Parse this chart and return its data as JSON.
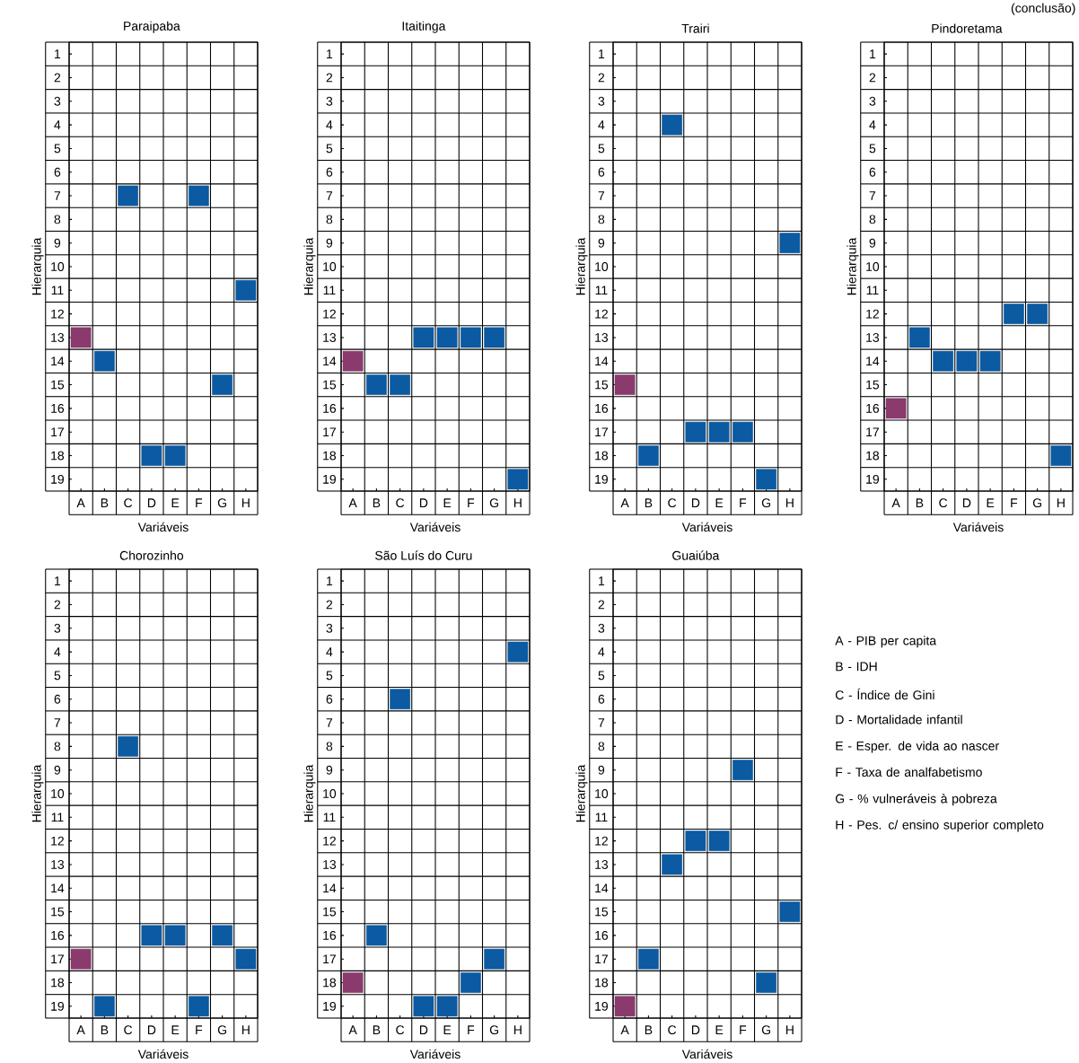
{
  "chart_data": [
    {
      "type": "scatter",
      "title": "Paraipaba",
      "xlabel": "Variáveis",
      "ylabel": "Hierarquia",
      "categories": [
        "A",
        "B",
        "C",
        "D",
        "E",
        "F",
        "G",
        "H"
      ],
      "values": [
        13,
        14,
        7,
        18,
        18,
        7,
        15,
        11
      ],
      "colors": [
        "#8b3a6e",
        "#0b5aa2",
        "#0b5aa2",
        "#0b5aa2",
        "#0b5aa2",
        "#0b5aa2",
        "#0b5aa2",
        "#0b5aa2"
      ],
      "ylim": [
        19.5,
        0.5
      ],
      "yticks": [
        1,
        2,
        3,
        4,
        5,
        6,
        7,
        8,
        9,
        10,
        11,
        12,
        13,
        14,
        15,
        16,
        17,
        18,
        19
      ],
      "grid": true,
      "marker": "square"
    },
    {
      "type": "scatter",
      "title": "Itaitinga",
      "xlabel": "Variáveis",
      "ylabel": "Hierarquia",
      "categories": [
        "A",
        "B",
        "C",
        "D",
        "E",
        "F",
        "G",
        "H"
      ],
      "values": [
        14,
        15,
        15,
        13,
        13,
        13,
        13,
        19
      ],
      "colors": [
        "#8b3a6e",
        "#0b5aa2",
        "#0b5aa2",
        "#0b5aa2",
        "#0b5aa2",
        "#0b5aa2",
        "#0b5aa2",
        "#0b5aa2"
      ],
      "ylim": [
        19.5,
        0.5
      ],
      "yticks": [
        1,
        2,
        3,
        4,
        5,
        6,
        7,
        8,
        9,
        10,
        11,
        12,
        13,
        14,
        15,
        16,
        17,
        18,
        19
      ],
      "grid": true,
      "marker": "square"
    },
    {
      "type": "scatter",
      "title": "Trairi",
      "xlabel": "Variáveis",
      "ylabel": "Hierarquia",
      "categories": [
        "A",
        "B",
        "C",
        "D",
        "E",
        "F",
        "G",
        "H"
      ],
      "values": [
        15,
        18,
        4,
        17,
        17,
        17,
        19,
        9
      ],
      "colors": [
        "#8b3a6e",
        "#0b5aa2",
        "#0b5aa2",
        "#0b5aa2",
        "#0b5aa2",
        "#0b5aa2",
        "#0b5aa2",
        "#0b5aa2"
      ],
      "ylim": [
        19.5,
        0.5
      ],
      "yticks": [
        1,
        2,
        3,
        4,
        5,
        6,
        7,
        8,
        9,
        10,
        11,
        12,
        13,
        14,
        15,
        16,
        17,
        18,
        19
      ],
      "grid": true,
      "marker": "square"
    },
    {
      "type": "scatter",
      "title": "Pindoretama",
      "xlabel": "Variáveis",
      "ylabel": "Hierarquia",
      "categories": [
        "A",
        "B",
        "C",
        "D",
        "E",
        "F",
        "G",
        "H"
      ],
      "values": [
        16,
        13,
        14,
        14,
        14,
        12,
        12,
        18
      ],
      "colors": [
        "#8b3a6e",
        "#0b5aa2",
        "#0b5aa2",
        "#0b5aa2",
        "#0b5aa2",
        "#0b5aa2",
        "#0b5aa2",
        "#0b5aa2"
      ],
      "ylim": [
        19.5,
        0.5
      ],
      "yticks": [
        1,
        2,
        3,
        4,
        5,
        6,
        7,
        8,
        9,
        10,
        11,
        12,
        13,
        14,
        15,
        16,
        17,
        18,
        19
      ],
      "grid": true,
      "marker": "square"
    },
    {
      "type": "scatter",
      "title": "Chorozinho",
      "xlabel": "Variáveis",
      "ylabel": "Hierarquia",
      "categories": [
        "A",
        "B",
        "C",
        "D",
        "E",
        "F",
        "G",
        "H"
      ],
      "values": [
        17,
        19,
        8,
        16,
        16,
        19,
        16,
        17
      ],
      "colors": [
        "#8b3a6e",
        "#0b5aa2",
        "#0b5aa2",
        "#0b5aa2",
        "#0b5aa2",
        "#0b5aa2",
        "#0b5aa2",
        "#0b5aa2"
      ],
      "ylim": [
        19.5,
        0.5
      ],
      "yticks": [
        1,
        2,
        3,
        4,
        5,
        6,
        7,
        8,
        9,
        10,
        11,
        12,
        13,
        14,
        15,
        16,
        17,
        18,
        19
      ],
      "grid": true,
      "marker": "square"
    },
    {
      "type": "scatter",
      "title": "São Luís do Curu",
      "xlabel": "Variáveis",
      "ylabel": "Hierarquia",
      "categories": [
        "A",
        "B",
        "C",
        "D",
        "E",
        "F",
        "G",
        "H"
      ],
      "values": [
        18,
        16,
        6,
        19,
        19,
        18,
        17,
        4
      ],
      "colors": [
        "#8b3a6e",
        "#0b5aa2",
        "#0b5aa2",
        "#0b5aa2",
        "#0b5aa2",
        "#0b5aa2",
        "#0b5aa2",
        "#0b5aa2"
      ],
      "ylim": [
        19.5,
        0.5
      ],
      "yticks": [
        1,
        2,
        3,
        4,
        5,
        6,
        7,
        8,
        9,
        10,
        11,
        12,
        13,
        14,
        15,
        16,
        17,
        18,
        19
      ],
      "grid": true,
      "marker": "square"
    },
    {
      "type": "scatter",
      "title": "Guaiúba",
      "xlabel": "Variáveis",
      "ylabel": "Hierarquia",
      "categories": [
        "A",
        "B",
        "C",
        "D",
        "E",
        "F",
        "G",
        "H"
      ],
      "values": [
        19,
        17,
        13,
        12,
        12,
        9,
        18,
        15
      ],
      "colors": [
        "#8b3a6e",
        "#0b5aa2",
        "#0b5aa2",
        "#0b5aa2",
        "#0b5aa2",
        "#0b5aa2",
        "#0b5aa2",
        "#0b5aa2"
      ],
      "ylim": [
        19.5,
        0.5
      ],
      "yticks": [
        1,
        2,
        3,
        4,
        5,
        6,
        7,
        8,
        9,
        10,
        11,
        12,
        13,
        14,
        15,
        16,
        17,
        18,
        19
      ],
      "grid": true,
      "marker": "square"
    },
    {
      "type": "other",
      "annotations": [
        "(conclusão)",
        "A - PIB per capita",
        "B - IDH",
        "C - Índice de Gini",
        "D - Mortalidade infantil",
        "E - Esper. de vida ao nascer",
        "F - Taxa de analfabetismo",
        "G - % vulneráveis à pobreza",
        "H - Pes. c/ ensino superior completo"
      ]
    }
  ]
}
